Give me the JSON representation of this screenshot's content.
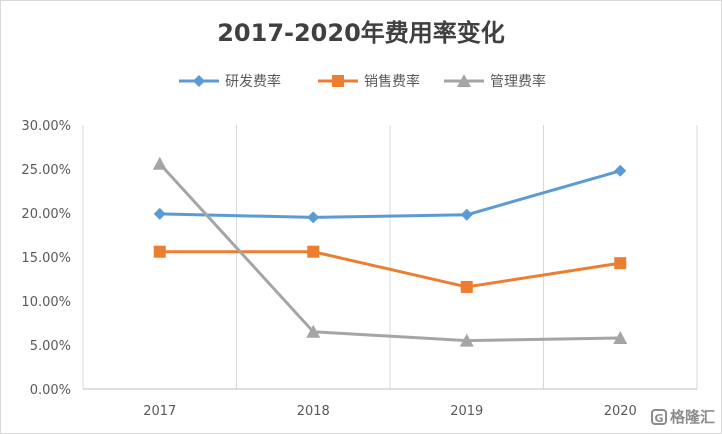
{
  "chart_data": {
    "type": "line",
    "title": "2017-2020年费用率变化",
    "categories": [
      "2017",
      "2018",
      "2019",
      "2020"
    ],
    "series": [
      {
        "name": "研发费率",
        "values": [
          19.9,
          19.5,
          19.8,
          24.8
        ],
        "color": "#5b9bd5",
        "marker": "diamond"
      },
      {
        "name": "销售费率",
        "values": [
          15.6,
          15.6,
          11.6,
          14.3
        ],
        "color": "#ed7d31",
        "marker": "square"
      },
      {
        "name": "管理费率",
        "values": [
          25.6,
          6.5,
          5.5,
          5.8
        ],
        "color": "#a5a5a5",
        "marker": "triangle"
      }
    ],
    "ylim": [
      0,
      30
    ],
    "yticks": [
      0,
      5,
      10,
      15,
      20,
      25,
      30
    ],
    "ytick_labels": [
      "0.00%",
      "5.00%",
      "10.00%",
      "15.00%",
      "20.00%",
      "25.00%",
      "30.00%"
    ],
    "xlabel": "",
    "ylabel": "",
    "grid": "vertical",
    "legend": "top"
  },
  "watermark": {
    "mark": "G",
    "text": "格隆汇"
  }
}
